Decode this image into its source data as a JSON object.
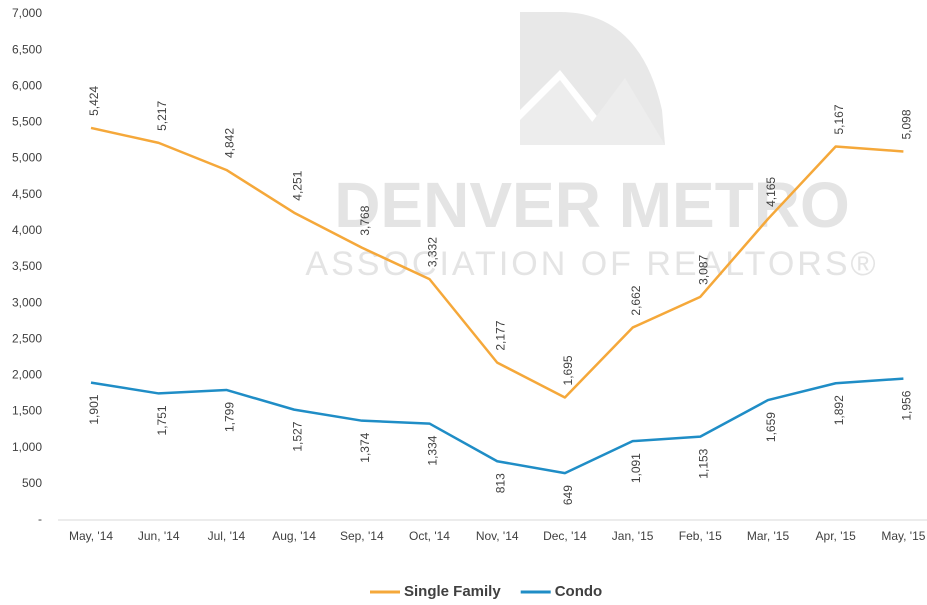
{
  "chart_data": {
    "type": "line",
    "watermark": [
      "DENVER METRO",
      "ASSOCIATION OF REALTORS®"
    ],
    "categories": [
      "May, '14",
      "Jun, '14",
      "Jul, '14",
      "Aug, '14",
      "Sep, '14",
      "Oct, '14",
      "Nov, '14",
      "Dec, '14",
      "Jan, '15",
      "Feb, '15",
      "Mar, '15",
      "Apr, '15",
      "May, '15"
    ],
    "series": [
      {
        "name": "Single Family",
        "color": "#f5a83a",
        "values": [
          5424,
          5217,
          4842,
          4251,
          3768,
          3332,
          2177,
          1695,
          2662,
          3087,
          4165,
          5167,
          5098
        ],
        "value_labels": [
          "5,424",
          "5,217",
          "4,842",
          "4,251",
          "3,768",
          "3,332",
          "2,177",
          "1,695",
          "2,662",
          "3,087",
          "4,165",
          "5,167",
          "5,098"
        ],
        "label_position": "above"
      },
      {
        "name": "Condo",
        "color": "#1f8dc6",
        "values": [
          1901,
          1751,
          1799,
          1527,
          1374,
          1334,
          813,
          649,
          1091,
          1153,
          1659,
          1892,
          1956
        ],
        "value_labels": [
          "1,901",
          "1,751",
          "1,799",
          "1,527",
          "1,374",
          "1,334",
          "813",
          "649",
          "1,091",
          "1,153",
          "1,659",
          "1,892",
          "1,956"
        ],
        "label_position": "below"
      }
    ],
    "ylim": [
      0,
      7000
    ],
    "yticks": [
      {
        "value": 0,
        "label": "-"
      },
      500,
      {
        "value": 1000,
        "label": "1,000"
      },
      {
        "value": 1500,
        "label": "1,500"
      },
      {
        "value": 2000,
        "label": "2,000"
      },
      {
        "value": 2500,
        "label": "2,500"
      },
      {
        "value": 3000,
        "label": "3,000"
      },
      {
        "value": 3500,
        "label": "3,500"
      },
      {
        "value": 4000,
        "label": "4,000"
      },
      {
        "value": 4500,
        "label": "4,500"
      },
      {
        "value": 5000,
        "label": "5,000"
      },
      {
        "value": 5500,
        "label": "5,500"
      },
      {
        "value": 6000,
        "label": "6,000"
      },
      {
        "value": 6500,
        "label": "6,500"
      },
      {
        "value": 7000,
        "label": "7,000"
      }
    ],
    "grid": false,
    "legend": "bottom"
  }
}
